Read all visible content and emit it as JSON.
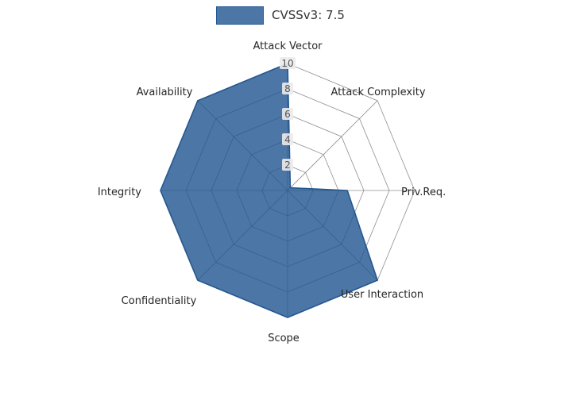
{
  "chart_data": {
    "type": "radar",
    "legend_label": "CVSSv3: 7.5",
    "categories": [
      "Attack Vector",
      "Attack Complexity",
      "Priv.Req.",
      "User Interaction",
      "Scope",
      "Confidentiality",
      "Integrity",
      "Availability"
    ],
    "values": [
      10,
      0.3,
      4.7,
      10,
      10,
      10,
      10,
      10
    ],
    "radial_ticks": [
      2,
      4,
      6,
      8,
      10
    ],
    "r_max": 10,
    "start_axis": "top",
    "direction": "clockwise",
    "grid": true,
    "legend_position": "top-center",
    "colors": {
      "fill": "#1f5490",
      "fill_opacity": 0.8,
      "edge": "#24578f",
      "grid": "#8f8f8f",
      "axis_label": "#262626",
      "tick_label": "#555555",
      "tick_bg": "#ebebeb",
      "background": "#ffffff"
    }
  }
}
